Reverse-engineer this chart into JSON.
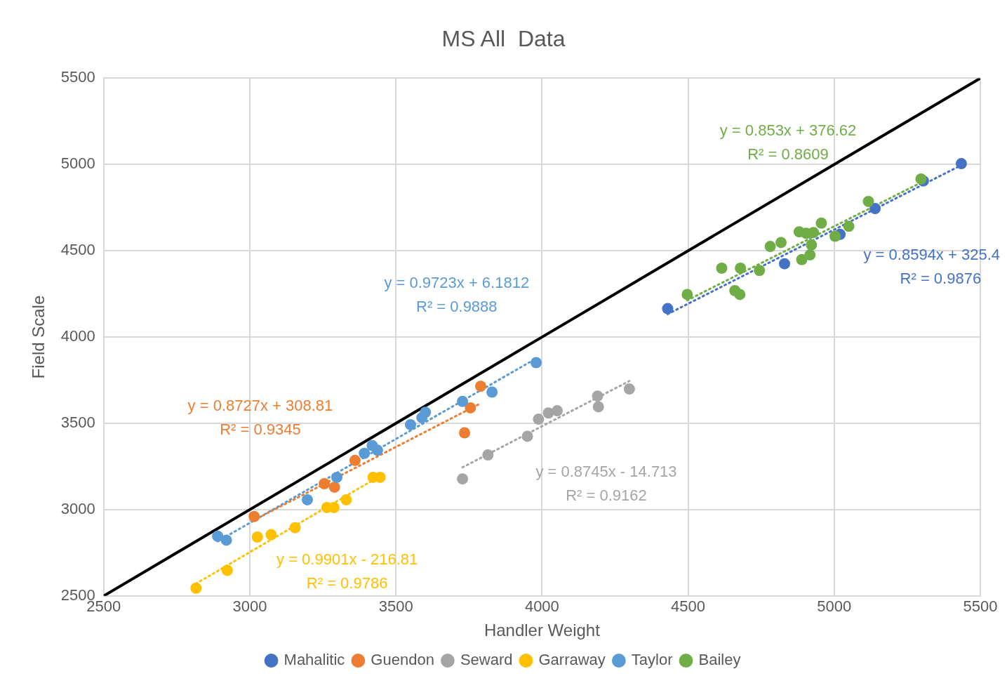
{
  "chart_data": {
    "type": "scatter",
    "title": "MS All  Data",
    "xlabel": "Handler Weight",
    "ylabel": "Field Scale",
    "xlim": [
      2500,
      5500
    ],
    "ylim": [
      2500,
      5500
    ],
    "xticks": [
      2500,
      3000,
      3500,
      4000,
      4500,
      5000,
      5500
    ],
    "yticks": [
      2500,
      3000,
      3500,
      4000,
      4500,
      5000,
      5500
    ],
    "grid": true,
    "legend": "bottom",
    "marker": "circle",
    "series": [
      {
        "name": "Mahalitic",
        "color": "#4472c4",
        "x": [
          4430,
          4830,
          5020,
          5140,
          5305,
          5435
        ],
        "values": [
          4165,
          4425,
          4595,
          4745,
          4905,
          5005
        ]
      },
      {
        "name": "Guendon",
        "color": "#ed7d31",
        "x": [
          3015,
          3255,
          3290,
          3360,
          3735,
          3755,
          3790
        ],
        "values": [
          2960,
          3150,
          3130,
          3285,
          3445,
          3590,
          3715
        ]
      },
      {
        "name": "Seward",
        "color": "#a5a5a5",
        "x": [
          3728,
          3815,
          3950,
          3988,
          4022,
          4052,
          4190,
          4193,
          4299
        ],
        "values": [
          3178,
          3317,
          3425,
          3524,
          3560,
          3573,
          3658,
          3596,
          3699
        ]
      },
      {
        "name": "Garraway",
        "color": "#ffc000",
        "x": [
          2816,
          2923,
          3026,
          3073,
          3155,
          3264,
          3288,
          3330,
          3422,
          3446
        ],
        "values": [
          2545,
          2648,
          2841,
          2855,
          2895,
          3012,
          3012,
          3057,
          3187,
          3187
        ]
      },
      {
        "name": "Taylor",
        "color": "#5b9bd5",
        "x": [
          2890,
          2920,
          3197,
          3298,
          3392,
          3419,
          3437,
          3550,
          3589,
          3601,
          3728,
          3829,
          3980
        ],
        "values": [
          2846,
          2823,
          3057,
          3187,
          3326,
          3371,
          3344,
          3492,
          3533,
          3564,
          3627,
          3681,
          3852
        ]
      },
      {
        "name": "Bailey",
        "color": "#70ad47",
        "x": [
          4497,
          4615,
          4679,
          4660,
          4677,
          4744,
          4781,
          4818,
          4880,
          4904,
          4929,
          4922,
          4956,
          4889,
          4917,
          5003,
          5050,
          5117,
          5297
        ],
        "values": [
          4247,
          4399,
          4399,
          4269,
          4247,
          4386,
          4525,
          4548,
          4610,
          4601,
          4606,
          4534,
          4660,
          4449,
          4476,
          4584,
          4642,
          4786,
          4916
        ]
      },
      {
        "type": "line",
        "color": "#000000",
        "line_style": "solid",
        "marker": "none",
        "x": [
          2500,
          5500
        ],
        "values": [
          2500,
          5500
        ]
      },
      {
        "type": "line",
        "color": "#4472c4",
        "line_style": "dotted",
        "marker": "none",
        "x": [
          4430,
          5435
        ],
        "values": [
          4133,
          4996
        ]
      },
      {
        "type": "line",
        "color": "#ed7d31",
        "line_style": "dotted",
        "marker": "none",
        "x": [
          3015,
          3790
        ],
        "values": [
          2940,
          3616
        ]
      },
      {
        "type": "line",
        "color": "#a5a5a5",
        "line_style": "dotted",
        "marker": "none",
        "x": [
          3728,
          4299
        ],
        "values": [
          3245,
          3745
        ]
      },
      {
        "type": "line",
        "color": "#ffc000",
        "line_style": "dotted",
        "marker": "none",
        "x": [
          2816,
          3446
        ],
        "values": [
          2571,
          3195
        ]
      },
      {
        "type": "line",
        "color": "#5b9bd5",
        "line_style": "dotted",
        "marker": "none",
        "x": [
          2890,
          3980
        ],
        "values": [
          2816,
          3876
        ]
      },
      {
        "type": "line",
        "color": "#70ad47",
        "line_style": "dotted",
        "marker": "none",
        "x": [
          4497,
          5297
        ],
        "values": [
          4213,
          4895
        ]
      }
    ],
    "annotations": [
      "y = 0.8594x + 325.4",
      "R² = 0.9876",
      "y = 0.8727x + 308.81",
      "R² = 0.9345",
      "y = 0.8745x - 14.713",
      "R² = 0.9162",
      "y = 0.9901x - 216.81",
      "R² = 0.9786",
      "y = 0.9723x + 6.1812",
      "R² = 0.9888",
      "y = 0.853x + 376.62",
      "R² = 0.8609"
    ]
  }
}
